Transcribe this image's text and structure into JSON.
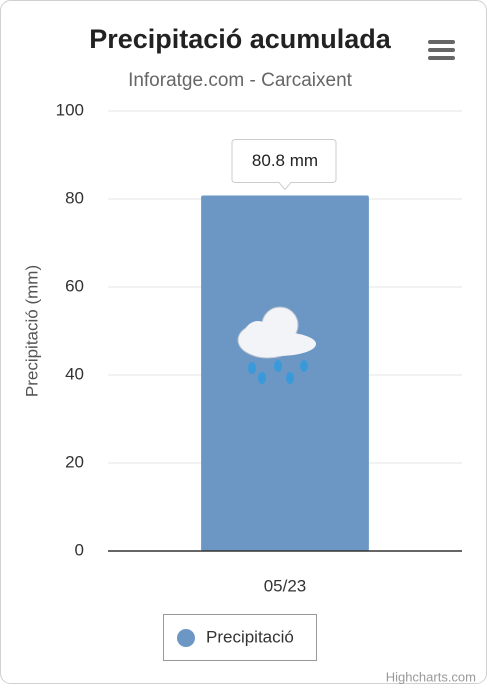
{
  "chart_data": {
    "type": "bar",
    "title": "Precipitació acumulada",
    "subtitle": "Inforatge.com - Carcaixent",
    "y_label": "Precipitació (mm)",
    "categories": [
      "05/23"
    ],
    "series": [
      {
        "name": "Precipitació",
        "color": "#6c97c4",
        "values": [
          80.8
        ],
        "value_labels": [
          "80.8 mm"
        ]
      }
    ],
    "ylim": [
      0,
      100
    ],
    "yticks": [
      0,
      20,
      40,
      60,
      80,
      100
    ],
    "grid": true
  },
  "credits": "Highcharts.com"
}
